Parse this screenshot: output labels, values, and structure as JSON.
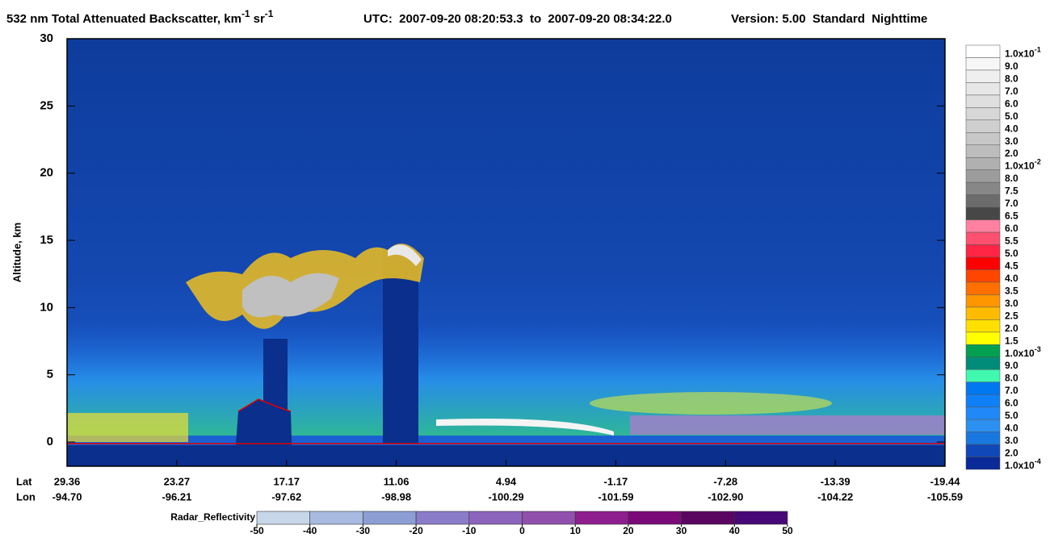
{
  "chart_data": {
    "type": "heatmap",
    "title": {
      "main": "532 nm Total Attenuated Backscatter, km",
      "exp1": "-1",
      "unit2": "sr",
      "exp2": "-1"
    },
    "utc": "UTC:  2007-09-20 08:20:53.3  to  2007-09-20 08:34:22.0",
    "version": "Version: 5.00  Standard  Nighttime",
    "ylabel": "Altitude, km",
    "ylim": [
      -1.8,
      30
    ],
    "yticks": [
      0,
      5,
      10,
      15,
      20,
      25,
      30
    ],
    "lat_label": "Lat",
    "lon_label": "Lon",
    "lat": [
      "29.36",
      "23.27",
      "17.17",
      "11.06",
      "4.94",
      "-1.17",
      "-7.28",
      "-13.39",
      "-19.44"
    ],
    "lon": [
      "-94.70",
      "-96.21",
      "-97.62",
      "-98.98",
      "-100.29",
      "-101.59",
      "-102.90",
      "-104.22",
      "-105.59"
    ],
    "colorbar": [
      {
        "label": "1.0x10",
        "exponent": "-1",
        "color": "#ffffff"
      },
      {
        "label": "9.0",
        "color": "#f7f7f7"
      },
      {
        "label": "8.0",
        "color": "#efefef"
      },
      {
        "label": "7.0",
        "color": "#e7e7e7"
      },
      {
        "label": "6.0",
        "color": "#dfdfdf"
      },
      {
        "label": "5.0",
        "color": "#d7d7d7"
      },
      {
        "label": "4.0",
        "color": "#cfcfcf"
      },
      {
        "label": "3.0",
        "color": "#c7c7c7"
      },
      {
        "label": "2.0",
        "color": "#bdbdbd"
      },
      {
        "label": "1.0x10",
        "exponent": "-2",
        "color": "#b0b0b0"
      },
      {
        "label": "8.0",
        "color": "#9c9c9c"
      },
      {
        "label": "7.5",
        "color": "#878787"
      },
      {
        "label": "7.0",
        "color": "#6c6c6c"
      },
      {
        "label": "6.5",
        "color": "#474747"
      },
      {
        "label": "6.0",
        "color": "#ff80a0"
      },
      {
        "label": "5.5",
        "color": "#ff5070"
      },
      {
        "label": "5.0",
        "color": "#ff2545"
      },
      {
        "label": "4.5",
        "color": "#ff0000"
      },
      {
        "label": "4.0",
        "color": "#ff4500"
      },
      {
        "label": "3.5",
        "color": "#ff7000"
      },
      {
        "label": "3.0",
        "color": "#ff9600"
      },
      {
        "label": "2.5",
        "color": "#ffbb00"
      },
      {
        "label": "2.0",
        "color": "#ffe000"
      },
      {
        "label": "1.5",
        "color": "#ffff00"
      },
      {
        "label": "1.0x10",
        "exponent": "-3",
        "color": "#00a050"
      },
      {
        "label": "9.0",
        "color": "#008c78"
      },
      {
        "label": "8.0",
        "color": "#40f8b0"
      },
      {
        "label": "7.0",
        "color": "#0078f0"
      },
      {
        "label": "6.0",
        "color": "#1080f8"
      },
      {
        "label": "5.0",
        "color": "#2088f8"
      },
      {
        "label": "4.0",
        "color": "#2c90f0"
      },
      {
        "label": "3.0",
        "color": "#1878e0"
      },
      {
        "label": "2.0",
        "color": "#1048b8"
      },
      {
        "label": "1.0x10",
        "exponent": "-4",
        "color": "#0a2a98"
      }
    ],
    "radar": {
      "label": "Radar_Reflectivity",
      "lim": [
        -50,
        50
      ],
      "ticks": [
        -50,
        -40,
        -30,
        -20,
        -10,
        0,
        10,
        20,
        30,
        40,
        50
      ],
      "colors": [
        "#c8d6ea",
        "#a8bae0",
        "#8c9ed4",
        "#8a7cc8",
        "#8c64bc",
        "#9050ac",
        "#8e1e8e",
        "#7a0a78",
        "#5a0660",
        "#480878"
      ]
    }
  }
}
